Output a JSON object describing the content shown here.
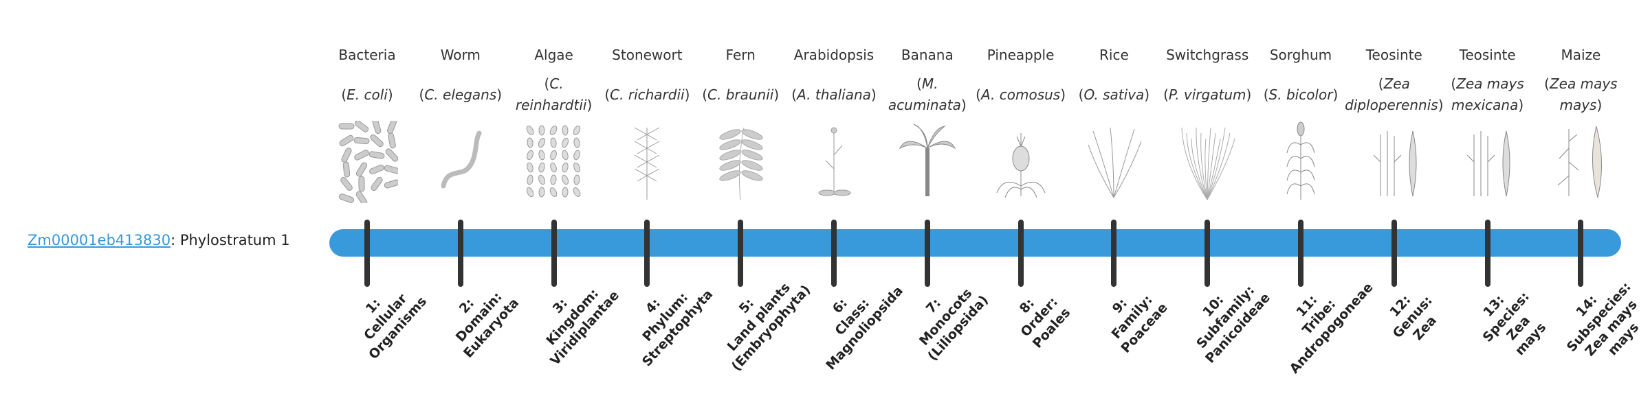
{
  "gene": {
    "id": "Zm00001eb413830",
    "suffix": ": Phylostratum 1"
  },
  "colors": {
    "bar": "#3899db",
    "tick": "#333333",
    "link": "#3498db"
  },
  "columns": [
    {
      "common": "Bacteria",
      "species": "E. coli",
      "icon": "bacteria-icon",
      "stratum": [
        "1:",
        "Cellular",
        "Organisms"
      ]
    },
    {
      "common": "Worm",
      "species": "C. elegans",
      "icon": "worm-icon",
      "stratum": [
        "2:",
        "Domain:",
        "Eukaryota"
      ]
    },
    {
      "common": "Algae",
      "species": "C. reinhardtii",
      "icon": "algae-icon",
      "stratum": [
        "3:",
        "Kingdom:",
        "Viridiplantae"
      ]
    },
    {
      "common": "Stonewort",
      "species": "C. richardii",
      "icon": "stonewort-icon",
      "stratum": [
        "4:",
        "Phylum:",
        "Streptophyta"
      ]
    },
    {
      "common": "Fern",
      "species": "C. braunii",
      "icon": "fern-icon",
      "stratum": [
        "5:",
        "Land plants",
        "(Embryophyta)"
      ]
    },
    {
      "common": "Arabidopsis",
      "species": "A. thaliana",
      "icon": "arabidopsis-icon",
      "stratum": [
        "6:",
        "Class:",
        "Magnoliopsida"
      ]
    },
    {
      "common": "Banana",
      "species": "M. acuminata",
      "icon": "banana-icon",
      "stratum": [
        "7:",
        "Monocots",
        "(Liliopsida)"
      ]
    },
    {
      "common": "Pineapple",
      "species": "A. comosus",
      "icon": "pineapple-icon",
      "stratum": [
        "8:",
        "Order:",
        "Poales"
      ]
    },
    {
      "common": "Rice",
      "species": "O. sativa",
      "icon": "rice-icon",
      "stratum": [
        "9:",
        "Family:",
        "Poaceae"
      ]
    },
    {
      "common": "Switchgrass",
      "species": "P. virgatum",
      "icon": "switchgrass-icon",
      "stratum": [
        "10:",
        "Subfamily:",
        "Panicoideae"
      ]
    },
    {
      "common": "Sorghum",
      "species": "S. bicolor",
      "icon": "sorghum-icon",
      "stratum": [
        "11:",
        "Tribe:",
        "Andropogoneae"
      ]
    },
    {
      "common": "Teosinte",
      "species": "Zea diploperennis",
      "icon": "teosinte-icon",
      "stratum": [
        "12:",
        "Genus:",
        "Zea"
      ]
    },
    {
      "common": "Teosinte",
      "species": "Zea mays mexicana",
      "icon": "teosinte-icon",
      "stratum": [
        "13:",
        "Species:",
        "Zea",
        "mays"
      ]
    },
    {
      "common": "Maize",
      "species": "Zea mays mays",
      "icon": "maize-icon",
      "stratum": [
        "14:",
        "Subspecies:",
        "Zea mays",
        "mays"
      ]
    }
  ]
}
